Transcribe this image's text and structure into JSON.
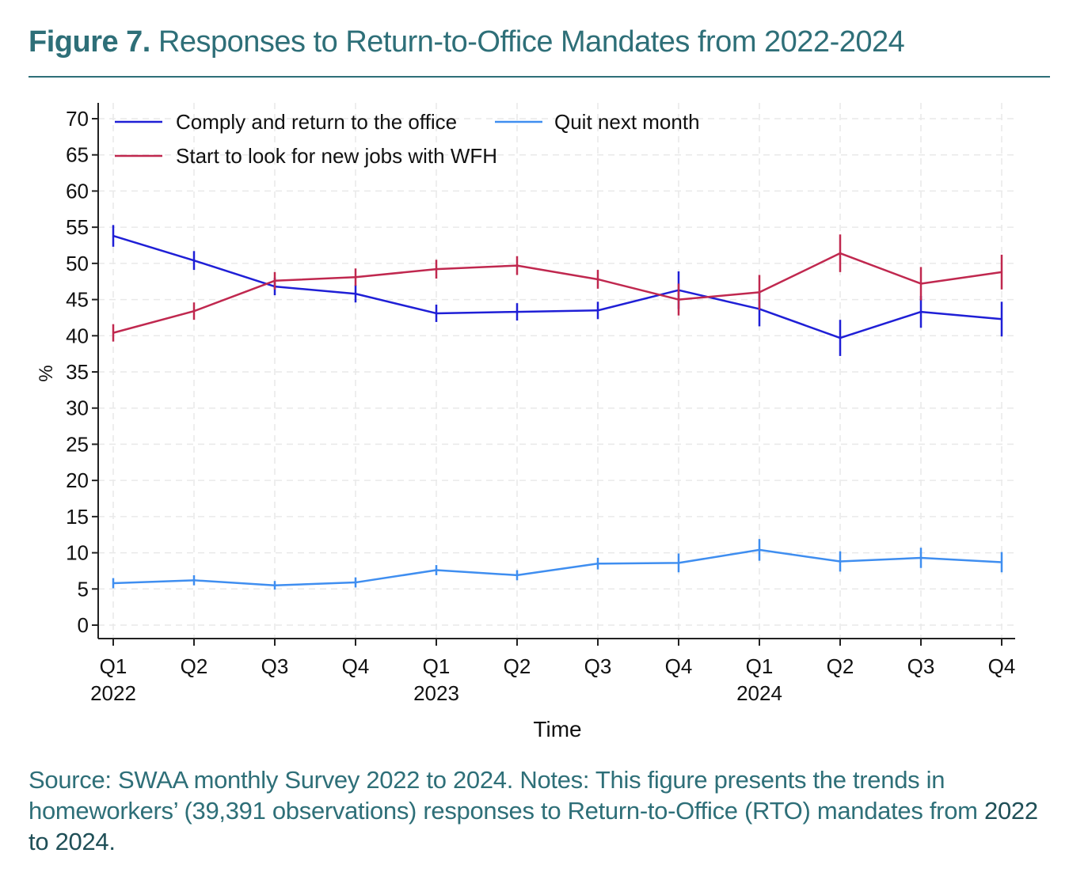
{
  "header": {
    "figure_label": "Figure 7.",
    "figure_title": "Responses to Return-to-Office Mandates from 2022-2024"
  },
  "chart_data": {
    "type": "line",
    "title": "",
    "xlabel": "Time",
    "ylabel": "%",
    "ylim": [
      0,
      70
    ],
    "yticks": [
      0,
      5,
      10,
      15,
      20,
      25,
      30,
      35,
      40,
      45,
      50,
      55,
      60,
      65,
      70
    ],
    "categories": [
      "Q1 2022",
      "Q2 2022",
      "Q3 2022",
      "Q4 2022",
      "Q1 2023",
      "Q2 2023",
      "Q3 2023",
      "Q4 2023",
      "Q1 2024",
      "Q2 2024",
      "Q3 2024",
      "Q4 2024"
    ],
    "tick_labels": [
      [
        "Q1",
        "2022"
      ],
      [
        "Q2",
        ""
      ],
      [
        "Q3",
        ""
      ],
      [
        "Q4",
        ""
      ],
      [
        "Q1",
        "2023"
      ],
      [
        "Q2",
        ""
      ],
      [
        "Q3",
        ""
      ],
      [
        "Q4",
        ""
      ],
      [
        "Q1",
        "2024"
      ],
      [
        "Q2",
        ""
      ],
      [
        "Q3",
        ""
      ],
      [
        "Q4",
        ""
      ]
    ],
    "grid": true,
    "error_bars": true,
    "legend_placement": "top",
    "series": [
      {
        "name": "Comply and return to the office",
        "color": "#1f1fd6",
        "values": [
          53.8,
          50.4,
          46.8,
          45.8,
          43.1,
          43.3,
          43.5,
          46.3,
          43.7,
          39.7,
          43.3,
          42.3
        ],
        "err": [
          1.5,
          1.3,
          1.2,
          1.2,
          1.2,
          1.2,
          1.2,
          2.6,
          2.4,
          2.5,
          2.2,
          2.4
        ]
      },
      {
        "name": "Start to look for new jobs with WFH",
        "color": "#c0284f",
        "values": [
          40.4,
          43.4,
          47.6,
          48.1,
          49.2,
          49.7,
          47.8,
          45.0,
          46.0,
          51.4,
          47.2,
          48.8
        ],
        "err": [
          1.2,
          1.2,
          1.2,
          1.2,
          1.3,
          1.3,
          1.3,
          2.2,
          2.4,
          2.6,
          2.3,
          2.4
        ]
      },
      {
        "name": "Quit next month",
        "color": "#3f8ef0",
        "values": [
          5.8,
          6.2,
          5.5,
          5.9,
          7.6,
          6.9,
          8.5,
          8.6,
          10.4,
          8.8,
          9.3,
          8.7
        ],
        "err": [
          0.7,
          0.7,
          0.6,
          0.7,
          0.7,
          0.7,
          0.8,
          1.3,
          1.5,
          1.4,
          1.4,
          1.4
        ]
      }
    ]
  },
  "caption": {
    "text": "Source: SWAA monthly Survey 2022 to 2024. Notes: This figure presents the trends in homeworkers’ (39,391 observations) responses to Return-to-Office (RTO) mandates from",
    "tail": "2022 to 2024."
  }
}
